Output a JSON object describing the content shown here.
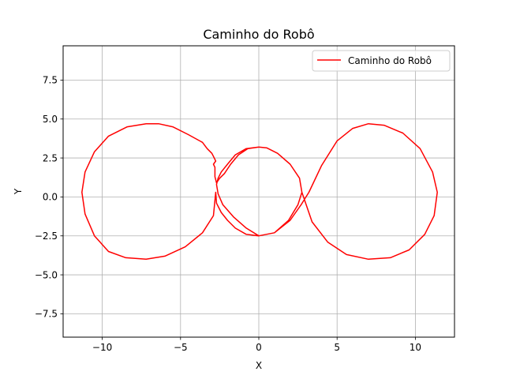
{
  "chart_data": {
    "type": "line",
    "title": "Caminho do Robô",
    "xlabel": "X",
    "ylabel": "Y",
    "xlim": [
      -12.5,
      12.5
    ],
    "ylim": [
      -9.0,
      9.7
    ],
    "xticks": [
      -10,
      -5,
      0,
      5,
      10
    ],
    "xtick_labels": [
      "−10",
      "−5",
      "0",
      "5",
      "10"
    ],
    "yticks": [
      -7.5,
      -5.0,
      -2.5,
      0.0,
      2.5,
      5.0,
      7.5
    ],
    "ytick_labels": [
      "−7.5",
      "−5.0",
      "−2.5",
      "0.0",
      "2.5",
      "5.0",
      "7.5"
    ],
    "grid": true,
    "legend": {
      "position": "top-right",
      "entries": [
        "Caminho do Robô"
      ]
    },
    "series": [
      {
        "name": "Caminho do Robô",
        "color": "#ff0000",
        "x": [
          0.0,
          1.0,
          1.9,
          2.5,
          2.75,
          2.6,
          2.0,
          1.2,
          0.5,
          0.0,
          -0.8,
          -1.5,
          -2.0,
          -2.4,
          -2.6,
          -2.7,
          -2.6,
          -2.3,
          -1.6,
          -0.8,
          0.0,
          1.0,
          2.0,
          2.7,
          3.2,
          4.0,
          5.0,
          6.0,
          7.0,
          8.0,
          9.2,
          10.3,
          11.1,
          11.4,
          11.2,
          10.6,
          9.6,
          8.4,
          7.0,
          5.6,
          4.4,
          3.4,
          2.75,
          2.6,
          2.0,
          1.2,
          0.5,
          0.0,
          -0.7,
          -1.3,
          -1.8,
          -2.2,
          -2.5,
          -2.7,
          -2.8,
          -2.8,
          -2.9,
          -2.75,
          -2.9,
          -3.0,
          -3.3,
          -3.6,
          -4.5,
          -5.5,
          -6.4,
          -7.2,
          -8.4,
          -9.6,
          -10.5,
          -11.1,
          -11.3,
          -11.1,
          -10.5,
          -9.6,
          -8.5,
          -7.2,
          -6.0,
          -4.7,
          -3.6,
          -2.9,
          -2.75,
          -2.7,
          -2.4,
          -2.0,
          -1.5,
          -0.8,
          0.0
        ],
        "y": [
          -2.5,
          -2.3,
          -1.5,
          -0.5,
          0.3,
          1.2,
          2.1,
          2.8,
          3.15,
          3.2,
          3.1,
          2.7,
          2.1,
          1.6,
          1.2,
          0.8,
          0.2,
          -0.5,
          -1.3,
          -2.0,
          -2.5,
          -2.3,
          -1.5,
          -0.5,
          0.3,
          2.0,
          3.6,
          4.4,
          4.7,
          4.6,
          4.1,
          3.1,
          1.6,
          0.3,
          -1.2,
          -2.4,
          -3.4,
          -3.9,
          -4.0,
          -3.7,
          -2.9,
          -1.6,
          0.3,
          1.2,
          2.1,
          2.8,
          3.15,
          3.2,
          3.1,
          2.7,
          2.1,
          1.5,
          1.2,
          0.9,
          1.3,
          1.9,
          2.1,
          2.3,
          2.6,
          2.8,
          3.1,
          3.5,
          4.0,
          4.5,
          4.7,
          4.7,
          4.5,
          3.9,
          2.9,
          1.6,
          0.3,
          -1.1,
          -2.5,
          -3.5,
          -3.9,
          -4.0,
          -3.8,
          -3.2,
          -2.3,
          -1.2,
          0.3,
          -0.4,
          -1.0,
          -1.5,
          -2.0,
          -2.4,
          -2.5
        ]
      }
    ]
  }
}
